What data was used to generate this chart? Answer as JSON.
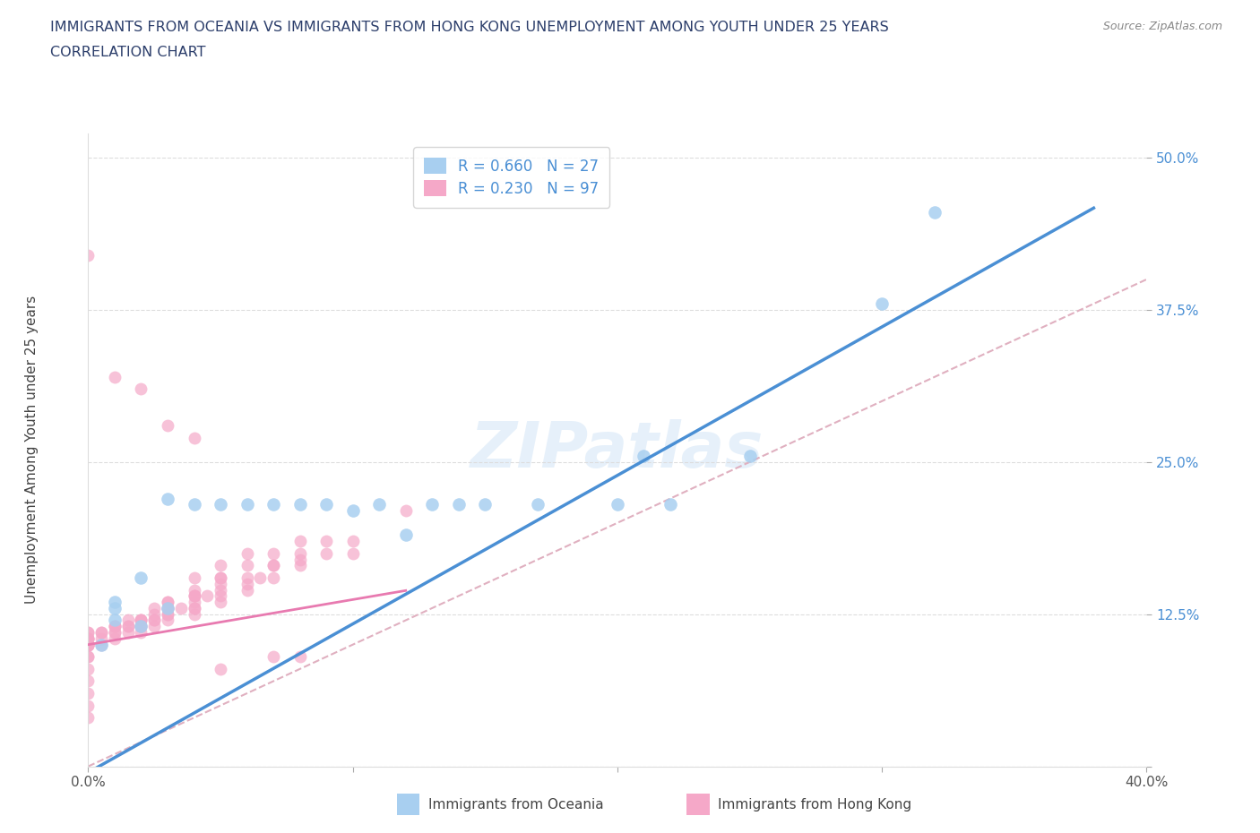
{
  "title_line1": "IMMIGRANTS FROM OCEANIA VS IMMIGRANTS FROM HONG KONG UNEMPLOYMENT AMONG YOUTH UNDER 25 YEARS",
  "title_line2": "CORRELATION CHART",
  "source": "Source: ZipAtlas.com",
  "ylabel": "Unemployment Among Youth under 25 years",
  "legend_label1": "Immigrants from Oceania",
  "legend_label2": "Immigrants from Hong Kong",
  "r1": 0.66,
  "n1": 27,
  "r2": 0.23,
  "n2": 97,
  "color_oceania": "#a8cff0",
  "color_hongkong": "#f5a8c8",
  "trendline_oceania": "#4a8fd4",
  "trendline_hongkong": "#e87ab0",
  "diagonal_color": "#e0b0c0",
  "xlim": [
    0.0,
    0.4
  ],
  "ylim": [
    0.0,
    0.52
  ],
  "oceania_x": [
    0.005,
    0.01,
    0.01,
    0.01,
    0.02,
    0.02,
    0.03,
    0.03,
    0.04,
    0.05,
    0.06,
    0.07,
    0.08,
    0.09,
    0.1,
    0.11,
    0.12,
    0.13,
    0.14,
    0.15,
    0.17,
    0.2,
    0.21,
    0.22,
    0.25,
    0.3,
    0.32
  ],
  "oceania_y": [
    0.1,
    0.12,
    0.13,
    0.135,
    0.115,
    0.155,
    0.13,
    0.22,
    0.215,
    0.215,
    0.215,
    0.215,
    0.215,
    0.215,
    0.21,
    0.215,
    0.19,
    0.215,
    0.215,
    0.215,
    0.215,
    0.215,
    0.255,
    0.215,
    0.255,
    0.38,
    0.455
  ],
  "hongkong_x": [
    0.0,
    0.0,
    0.0,
    0.0,
    0.0,
    0.0,
    0.0,
    0.0,
    0.0,
    0.0,
    0.0,
    0.0,
    0.0,
    0.0,
    0.0,
    0.0,
    0.0,
    0.0,
    0.0,
    0.0,
    0.0,
    0.005,
    0.005,
    0.005,
    0.005,
    0.01,
    0.01,
    0.01,
    0.01,
    0.01,
    0.01,
    0.01,
    0.015,
    0.015,
    0.015,
    0.015,
    0.02,
    0.02,
    0.02,
    0.02,
    0.02,
    0.02,
    0.02,
    0.025,
    0.025,
    0.025,
    0.025,
    0.025,
    0.03,
    0.03,
    0.03,
    0.03,
    0.03,
    0.03,
    0.03,
    0.03,
    0.035,
    0.04,
    0.04,
    0.04,
    0.04,
    0.04,
    0.04,
    0.04,
    0.04,
    0.04,
    0.04,
    0.045,
    0.05,
    0.05,
    0.05,
    0.05,
    0.05,
    0.05,
    0.05,
    0.05,
    0.06,
    0.06,
    0.06,
    0.06,
    0.06,
    0.065,
    0.07,
    0.07,
    0.07,
    0.07,
    0.07,
    0.08,
    0.08,
    0.08,
    0.08,
    0.08,
    0.09,
    0.09,
    0.1,
    0.1,
    0.12
  ],
  "hongkong_y": [
    0.04,
    0.05,
    0.06,
    0.07,
    0.08,
    0.09,
    0.09,
    0.1,
    0.1,
    0.1,
    0.1,
    0.1,
    0.1,
    0.1,
    0.105,
    0.105,
    0.105,
    0.105,
    0.11,
    0.42,
    0.11,
    0.1,
    0.105,
    0.11,
    0.11,
    0.105,
    0.11,
    0.11,
    0.115,
    0.115,
    0.115,
    0.32,
    0.11,
    0.115,
    0.115,
    0.12,
    0.11,
    0.115,
    0.115,
    0.12,
    0.12,
    0.12,
    0.31,
    0.115,
    0.12,
    0.12,
    0.125,
    0.13,
    0.12,
    0.125,
    0.125,
    0.13,
    0.13,
    0.135,
    0.135,
    0.28,
    0.13,
    0.125,
    0.13,
    0.13,
    0.135,
    0.14,
    0.14,
    0.14,
    0.145,
    0.155,
    0.27,
    0.14,
    0.135,
    0.14,
    0.145,
    0.15,
    0.155,
    0.155,
    0.165,
    0.08,
    0.145,
    0.15,
    0.155,
    0.165,
    0.175,
    0.155,
    0.155,
    0.165,
    0.165,
    0.175,
    0.09,
    0.165,
    0.17,
    0.175,
    0.185,
    0.09,
    0.175,
    0.185,
    0.175,
    0.185,
    0.21
  ]
}
